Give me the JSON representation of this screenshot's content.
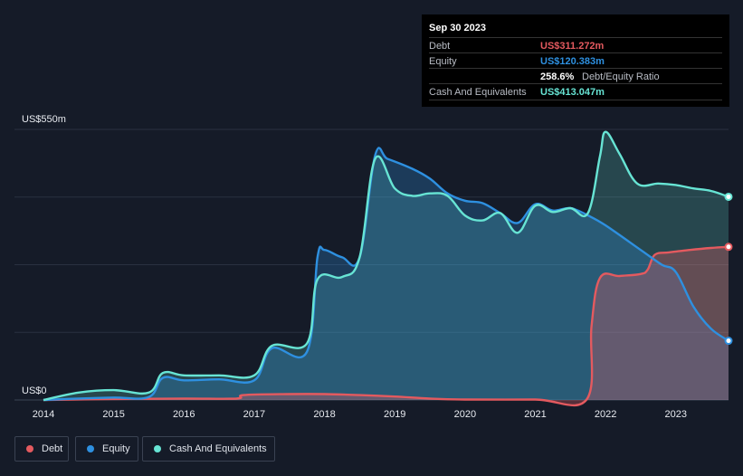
{
  "tooltip": {
    "date": "Sep 30 2023",
    "debt_label": "Debt",
    "debt_value": "US$311.272m",
    "equity_label": "Equity",
    "equity_value": "US$120.383m",
    "ratio_value": "258.6%",
    "ratio_label": "Debt/Equity Ratio",
    "cash_label": "Cash And Equivalents",
    "cash_value": "US$413.047m"
  },
  "legend": {
    "debt": "Debt",
    "equity": "Equity",
    "cash": "Cash And Equivalents"
  },
  "colors": {
    "debt": "#e45a5f",
    "equity": "#2e90e0",
    "cash": "#67e4d4",
    "background": "#151b28"
  },
  "chart_data": {
    "type": "area",
    "title": "",
    "xlabel": "",
    "ylabel": "",
    "y_top_label": "US$550m",
    "y_bottom_label": "US$0",
    "ylim": [
      0,
      550
    ],
    "xlim": [
      2014,
      2023.75
    ],
    "x_ticks": [
      2014,
      2015,
      2016,
      2017,
      2018,
      2019,
      2020,
      2021,
      2022,
      2023
    ],
    "x_tick_labels": [
      "2014",
      "2015",
      "2016",
      "2017",
      "2018",
      "2019",
      "2020",
      "2021",
      "2022",
      "2023"
    ],
    "series": [
      {
        "name": "Debt",
        "key": "debt",
        "points": [
          [
            2014,
            0
          ],
          [
            2015,
            2
          ],
          [
            2016,
            3
          ],
          [
            2016.75,
            3
          ],
          [
            2016.85,
            10
          ],
          [
            2017.5,
            12
          ],
          [
            2018,
            12
          ],
          [
            2018.5,
            10
          ],
          [
            2019,
            7
          ],
          [
            2019.5,
            3
          ],
          [
            2020,
            1
          ],
          [
            2021,
            1
          ],
          [
            2021.73,
            1
          ],
          [
            2021.8,
            150
          ],
          [
            2021.92,
            248
          ],
          [
            2022.2,
            252
          ],
          [
            2022.5,
            256
          ],
          [
            2022.6,
            265
          ],
          [
            2022.7,
            295
          ],
          [
            2022.9,
            300
          ],
          [
            2023.2,
            305
          ],
          [
            2023.5,
            309
          ],
          [
            2023.75,
            311.272
          ]
        ]
      },
      {
        "name": "Equity",
        "key": "equity",
        "points": [
          [
            2014,
            0
          ],
          [
            2014.5,
            3
          ],
          [
            2015,
            5
          ],
          [
            2015.5,
            6
          ],
          [
            2015.7,
            45
          ],
          [
            2016,
            40
          ],
          [
            2016.5,
            42
          ],
          [
            2017,
            40
          ],
          [
            2017.25,
            105
          ],
          [
            2017.75,
            98
          ],
          [
            2017.9,
            290
          ],
          [
            2018,
            305
          ],
          [
            2018.25,
            290
          ],
          [
            2018.5,
            290
          ],
          [
            2018.72,
            497
          ],
          [
            2018.9,
            490
          ],
          [
            2019.25,
            470
          ],
          [
            2019.5,
            450
          ],
          [
            2019.75,
            420
          ],
          [
            2020,
            405
          ],
          [
            2020.25,
            400
          ],
          [
            2020.5,
            380
          ],
          [
            2020.75,
            360
          ],
          [
            2021,
            398
          ],
          [
            2021.25,
            385
          ],
          [
            2021.5,
            390
          ],
          [
            2021.75,
            375
          ],
          [
            2022,
            355
          ],
          [
            2022.5,
            305
          ],
          [
            2022.8,
            275
          ],
          [
            2023,
            260
          ],
          [
            2023.25,
            190
          ],
          [
            2023.5,
            145
          ],
          [
            2023.75,
            120.383
          ]
        ]
      },
      {
        "name": "Cash And Equivalents",
        "key": "cash",
        "points": [
          [
            2014,
            0
          ],
          [
            2014.5,
            15
          ],
          [
            2015,
            20
          ],
          [
            2015.5,
            15
          ],
          [
            2015.7,
            55
          ],
          [
            2016,
            50
          ],
          [
            2016.5,
            50
          ],
          [
            2017,
            50
          ],
          [
            2017.25,
            110
          ],
          [
            2017.75,
            115
          ],
          [
            2017.9,
            245
          ],
          [
            2018.25,
            250
          ],
          [
            2018.5,
            290
          ],
          [
            2018.72,
            490
          ],
          [
            2019,
            430
          ],
          [
            2019.25,
            415
          ],
          [
            2019.5,
            420
          ],
          [
            2019.75,
            415
          ],
          [
            2020,
            375
          ],
          [
            2020.25,
            365
          ],
          [
            2020.5,
            380
          ],
          [
            2020.75,
            340
          ],
          [
            2021,
            395
          ],
          [
            2021.25,
            382
          ],
          [
            2021.5,
            390
          ],
          [
            2021.75,
            380
          ],
          [
            2021.92,
            495
          ],
          [
            2022,
            545
          ],
          [
            2022.2,
            500
          ],
          [
            2022.45,
            440
          ],
          [
            2022.75,
            440
          ],
          [
            2023,
            437
          ],
          [
            2023.25,
            430
          ],
          [
            2023.5,
            425
          ],
          [
            2023.75,
            413.047
          ]
        ]
      }
    ]
  }
}
